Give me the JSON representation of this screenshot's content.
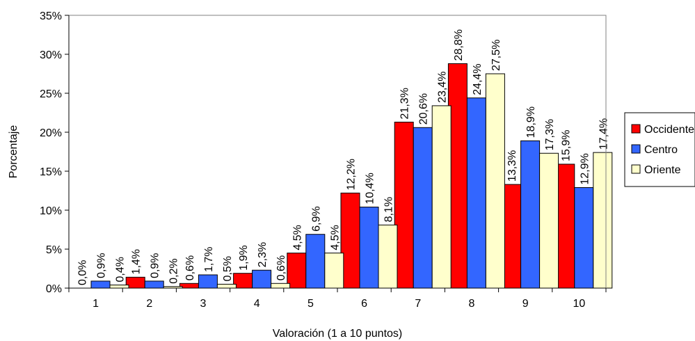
{
  "chart_data": {
    "type": "bar",
    "title": "",
    "xlabel": "Valoración (1 a 10 puntos)",
    "ylabel": "Porcentaje",
    "ylim": [
      0,
      35
    ],
    "yticks": [
      "0%",
      "5%",
      "10%",
      "15%",
      "20%",
      "25%",
      "30%",
      "35%"
    ],
    "grid": false,
    "legend_position": "right",
    "categories": [
      "1",
      "2",
      "3",
      "4",
      "5",
      "6",
      "7",
      "8",
      "9",
      "10"
    ],
    "series": [
      {
        "name": "Occidente",
        "color": "#ff0000",
        "values": [
          0.0,
          1.4,
          0.6,
          1.9,
          4.5,
          12.2,
          21.3,
          28.8,
          13.3,
          15.9
        ],
        "labels": [
          "0,0%",
          "1,4%",
          "0,6%",
          "1,9%",
          "4,5%",
          "12,2%",
          "21,3%",
          "28,8%",
          "13,3%",
          "15,9%"
        ]
      },
      {
        "name": "Centro",
        "color": "#3366ff",
        "values": [
          0.9,
          0.9,
          1.7,
          2.3,
          6.9,
          10.4,
          20.6,
          24.4,
          18.9,
          12.9
        ],
        "labels": [
          "0,9%",
          "0,9%",
          "1,7%",
          "2,3%",
          "6,9%",
          "10,4%",
          "20,6%",
          "24,4%",
          "18,9%",
          "12,9%"
        ]
      },
      {
        "name": "Oriente",
        "color": "#ffffcc",
        "values": [
          0.4,
          0.2,
          0.5,
          0.6,
          4.5,
          8.1,
          23.4,
          27.5,
          17.3,
          17.4
        ],
        "labels": [
          "0,4%",
          "0,2%",
          "0,5%",
          "0,6%",
          "4,5%",
          "8,1%",
          "23,4%",
          "27,5%",
          "17,3%",
          "17,4%"
        ]
      }
    ]
  }
}
